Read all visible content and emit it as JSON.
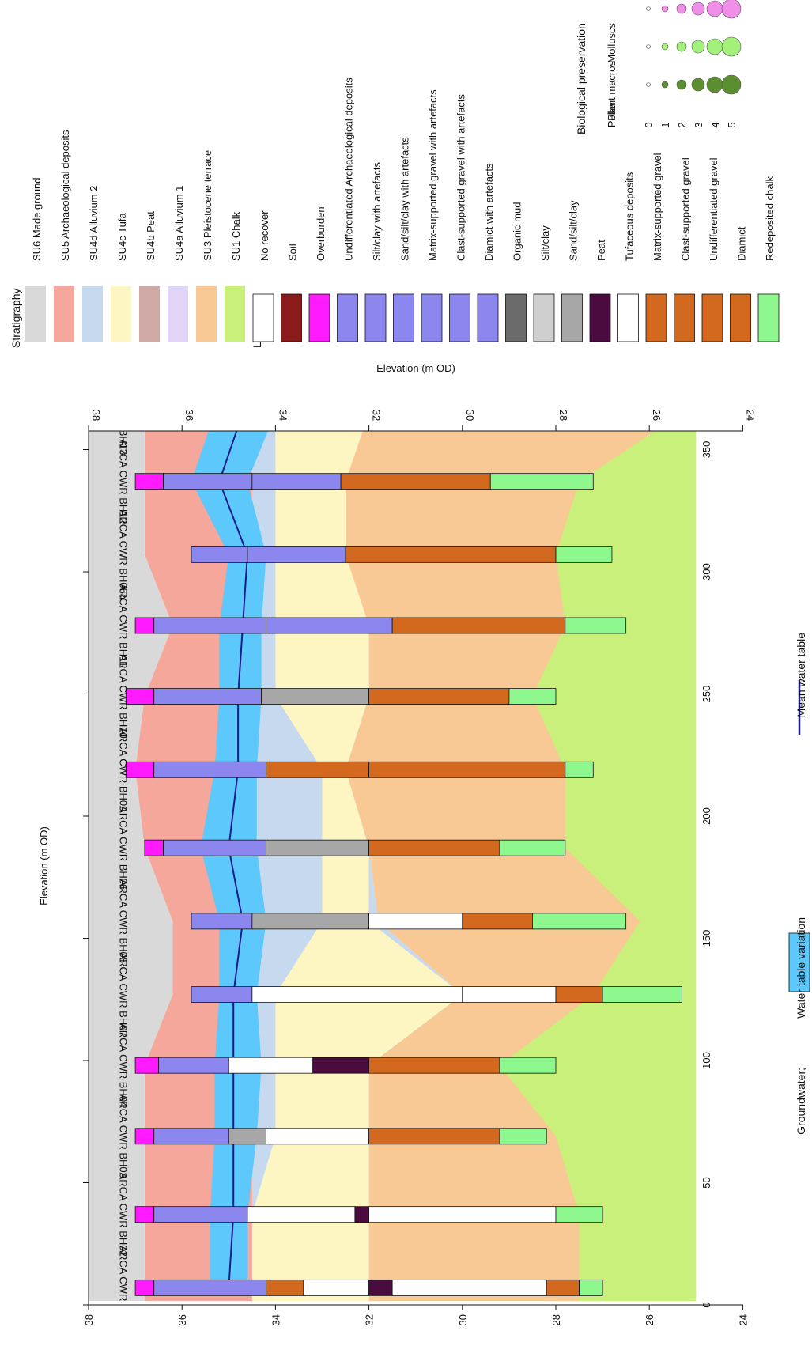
{
  "axes": {
    "x_label": "Elevation (m OD)",
    "x_ticks": [
      38,
      36,
      34,
      32,
      30,
      28,
      26,
      24
    ],
    "y_ticks": [
      0,
      50,
      100,
      150,
      200,
      250,
      300,
      350
    ],
    "top_label": "Elevation (m OD)"
  },
  "boreholes": [
    {
      "label": "ARCA CWR BH01",
      "dist": 7
    },
    {
      "label": "ARCA CWR BH02",
      "dist": 37
    },
    {
      "label": "ARCA CWR BH03",
      "dist": 69
    },
    {
      "label": "ARCA CWR BH04",
      "dist": 98
    },
    {
      "label": "ARCA CWR BH07",
      "dist": 127
    },
    {
      "label": "ARCA CWR BH08",
      "dist": 157
    },
    {
      "label": "ARCA CWR BH06",
      "dist": 187
    },
    {
      "label": "ARCA CWR BH09",
      "dist": 219
    },
    {
      "label": "ARCA CWR BH10",
      "dist": 249
    },
    {
      "label": "ARCA CWR BH11",
      "dist": 278
    },
    {
      "label": "ARCA CWR BH05a",
      "dist": 307
    },
    {
      "label": "ARCA CWR BH12",
      "dist": 337
    },
    {
      "label": "ARCA CWR BH13",
      "dist": 365
    }
  ],
  "bottom_legend": {
    "groundwater": "Groundwater;",
    "variation": "Water table variation",
    "mean": "Mean water table"
  },
  "legend": {
    "stratigraphy_title": "Stratigraphy",
    "stratigraphy": [
      {
        "label": "SU6 Made ground",
        "color": "#d9d9d9"
      },
      {
        "label": "SU5 Archaeological deposits",
        "color": "#f4a79a"
      },
      {
        "label": "SU4d Alluvium 2",
        "color": "#c6d9ef"
      },
      {
        "label": "SU4c Tufa",
        "color": "#fdf6c3"
      },
      {
        "label": "SU4b Peat",
        "color": "#d0a9a5"
      },
      {
        "label": "SU4a Alluvium 1",
        "color": "#e2d4f6"
      },
      {
        "label": "SU3 Pleistocene terrace",
        "color": "#f8c994"
      },
      {
        "label": "SU1 Chalk",
        "color": "#c8f07a"
      }
    ],
    "lithology_title": "Lithology",
    "lithology": [
      {
        "label": "No recover",
        "color": "#ffffff"
      },
      {
        "label": "Soil",
        "color": "#8b1a1a"
      },
      {
        "label": "Overburden",
        "color": "#ff1aff"
      },
      {
        "label": "Undifferentiated Archaeological deposits",
        "color": "#8c87ee"
      },
      {
        "label": "Silt/clay with artefacts",
        "color": "#8c87ee"
      },
      {
        "label": "Sand/silt/clay with artefacts",
        "color": "#8c87ee"
      },
      {
        "label": "Matrix-supported gravel with artefacts",
        "color": "#8c87ee"
      },
      {
        "label": "Clast-supported gravel with artefacts",
        "color": "#8c87ee"
      },
      {
        "label": "Diamict with artefacts",
        "color": "#8c87ee"
      },
      {
        "label": "Organic mud",
        "color": "#6b6b6b"
      },
      {
        "label": "Silt/clay",
        "color": "#cfcfcf"
      },
      {
        "label": "Sand/silt/clay",
        "color": "#a7a7a7"
      },
      {
        "label": "Peat",
        "color": "#4a0b3e"
      },
      {
        "label": "Tufaceous deposits",
        "color": "#ffffff"
      },
      {
        "label": "Matrix-supported gravel",
        "color": "#d2691e"
      },
      {
        "label": "Clast-supported gravel",
        "color": "#d2691e"
      },
      {
        "label": "Undifferentiated gravel",
        "color": "#d2691e"
      },
      {
        "label": "Diamict",
        "color": "#d2691e"
      },
      {
        "label": "Redeposited chalk",
        "color": "#8ef78e"
      }
    ],
    "bio_title": "Biological preservation",
    "bio_rows": [
      {
        "label": "Pollen",
        "color": "#5b8e31"
      },
      {
        "label": "Plant macros",
        "color": "#a3f07a"
      },
      {
        "label": "Molluscs",
        "color": "#f08ee8"
      }
    ],
    "bio_scale": [
      "0",
      "1",
      "2",
      "3",
      "4",
      "5"
    ]
  },
  "colors": {
    "groundwater": "#5cc8fb",
    "mean_line": "#1a1a8c"
  }
}
